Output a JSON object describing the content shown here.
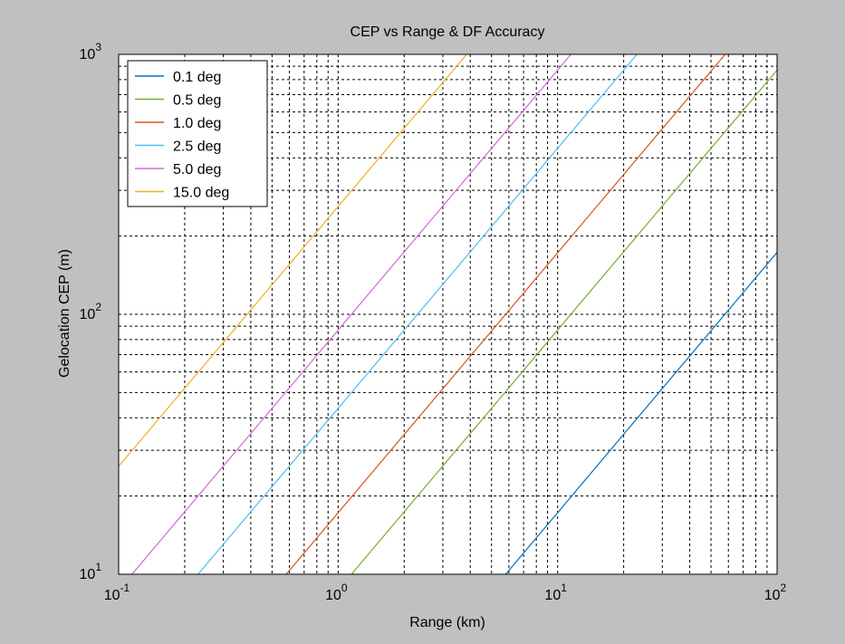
{
  "chart_data": {
    "type": "line",
    "title": "CEP vs Range & DF Accuracy",
    "xlabel": "Range (km)",
    "ylabel": "Gelocation CEP (m)",
    "xscale": "log",
    "yscale": "log",
    "xlim": [
      0.1,
      100
    ],
    "ylim": [
      10,
      1000
    ],
    "grid": true,
    "legend_position": "top-left",
    "x_ticks": [
      {
        "value": 0.1,
        "base": "10",
        "exp": "-1"
      },
      {
        "value": 1,
        "base": "10",
        "exp": "0"
      },
      {
        "value": 10,
        "base": "10",
        "exp": "1"
      },
      {
        "value": 100,
        "base": "10",
        "exp": "2"
      }
    ],
    "y_ticks": [
      {
        "value": 10,
        "base": "10",
        "exp": "1"
      },
      {
        "value": 100,
        "base": "10",
        "exp": "2"
      },
      {
        "value": 1000,
        "base": "10",
        "exp": "3"
      }
    ],
    "series": [
      {
        "name": "0.1 deg",
        "color": "#0072bd",
        "x": [
          5.8,
          100
        ],
        "y": [
          10,
          173
        ]
      },
      {
        "name": "0.5 deg",
        "color": "#77ac30",
        "x": [
          1.15,
          100
        ],
        "y": [
          10,
          870
        ]
      },
      {
        "name": "1.0 deg",
        "color": "#d95319",
        "x": [
          0.58,
          58
        ],
        "y": [
          10,
          1000
        ]
      },
      {
        "name": "2.5 deg",
        "color": "#4dbeee",
        "x": [
          0.23,
          23
        ],
        "y": [
          10,
          1000
        ]
      },
      {
        "name": "5.0 deg",
        "color": "#d068d8",
        "x": [
          0.115,
          11.5
        ],
        "y": [
          10,
          1000
        ]
      },
      {
        "name": "15.0 deg",
        "color": "#edb120",
        "x": [
          0.1,
          3.85
        ],
        "y": [
          26,
          1000
        ]
      }
    ]
  }
}
